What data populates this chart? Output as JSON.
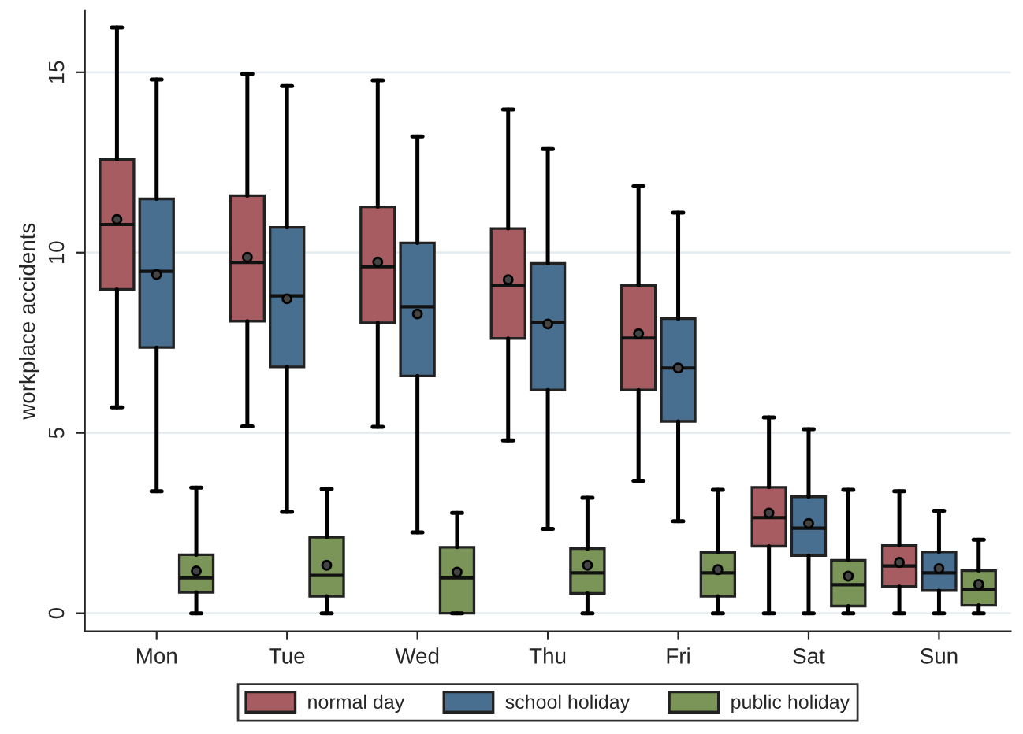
{
  "chart_data": {
    "type": "box",
    "ylabel": "workplace accidents",
    "categories": [
      "Mon",
      "Tue",
      "Wed",
      "Thu",
      "Fri",
      "Sat",
      "Sun"
    ],
    "ylim": [
      -0.5,
      16.7
    ],
    "yticks": [
      0,
      5,
      10,
      15
    ],
    "grid": "y",
    "legend": "bottom",
    "series": [
      {
        "name": "normal day",
        "color": "#a65c61",
        "boxes": [
          {
            "low": 5.71,
            "q1": 8.98,
            "median": 10.78,
            "q3": 12.58,
            "high": 16.24,
            "mean": 10.92
          },
          {
            "low": 5.18,
            "q1": 8.1,
            "median": 9.73,
            "q3": 11.58,
            "high": 14.96,
            "mean": 9.87
          },
          {
            "low": 5.17,
            "q1": 8.05,
            "median": 9.61,
            "q3": 11.27,
            "high": 14.78,
            "mean": 9.74
          },
          {
            "low": 4.79,
            "q1": 7.62,
            "median": 9.09,
            "q3": 10.67,
            "high": 13.97,
            "mean": 9.25
          },
          {
            "low": 3.67,
            "q1": 6.19,
            "median": 7.63,
            "q3": 9.09,
            "high": 11.84,
            "mean": 7.75
          },
          {
            "low": 0,
            "q1": 1.86,
            "median": 2.65,
            "q3": 3.49,
            "high": 5.43,
            "mean": 2.78
          },
          {
            "low": 0,
            "q1": 0.74,
            "median": 1.31,
            "q3": 1.88,
            "high": 3.38,
            "mean": 1.41
          }
        ]
      },
      {
        "name": "school holiday",
        "color": "#486f8f",
        "boxes": [
          {
            "low": 3.38,
            "q1": 7.37,
            "median": 9.48,
            "q3": 11.49,
            "high": 14.8,
            "mean": 9.39
          },
          {
            "low": 2.81,
            "q1": 6.83,
            "median": 8.8,
            "q3": 10.7,
            "high": 14.62,
            "mean": 8.72
          },
          {
            "low": 2.24,
            "q1": 6.58,
            "median": 8.5,
            "q3": 10.27,
            "high": 13.22,
            "mean": 8.3
          },
          {
            "low": 2.34,
            "q1": 6.19,
            "median": 8.07,
            "q3": 9.7,
            "high": 12.87,
            "mean": 8.02
          },
          {
            "low": 2.55,
            "q1": 5.32,
            "median": 6.8,
            "q3": 8.17,
            "high": 11.11,
            "mean": 6.8
          },
          {
            "low": 0,
            "q1": 1.6,
            "median": 2.36,
            "q3": 3.23,
            "high": 5.1,
            "mean": 2.49
          },
          {
            "low": 0,
            "q1": 0.63,
            "median": 1.12,
            "q3": 1.7,
            "high": 2.84,
            "mean": 1.24
          }
        ]
      },
      {
        "name": "public holiday",
        "color": "#7a9557",
        "boxes": [
          {
            "low": 0,
            "q1": 0.58,
            "median": 0.98,
            "q3": 1.62,
            "high": 3.48,
            "mean": 1.17
          },
          {
            "low": 0,
            "q1": 0.47,
            "median": 1.05,
            "q3": 2.11,
            "high": 3.44,
            "mean": 1.33
          },
          {
            "low": 0,
            "q1": 0,
            "median": 0.98,
            "q3": 1.83,
            "high": 2.78,
            "mean": 1.14
          },
          {
            "low": 0,
            "q1": 0.55,
            "median": 1.12,
            "q3": 1.79,
            "high": 3.2,
            "mean": 1.33
          },
          {
            "low": 0,
            "q1": 0.47,
            "median": 1.12,
            "q3": 1.69,
            "high": 3.42,
            "mean": 1.21
          },
          {
            "low": 0,
            "q1": 0.2,
            "median": 0.79,
            "q3": 1.47,
            "high": 3.42,
            "mean": 1.03
          },
          {
            "low": 0,
            "q1": 0.22,
            "median": 0.66,
            "q3": 1.18,
            "high": 2.04,
            "mean": 0.8
          }
        ]
      }
    ]
  }
}
